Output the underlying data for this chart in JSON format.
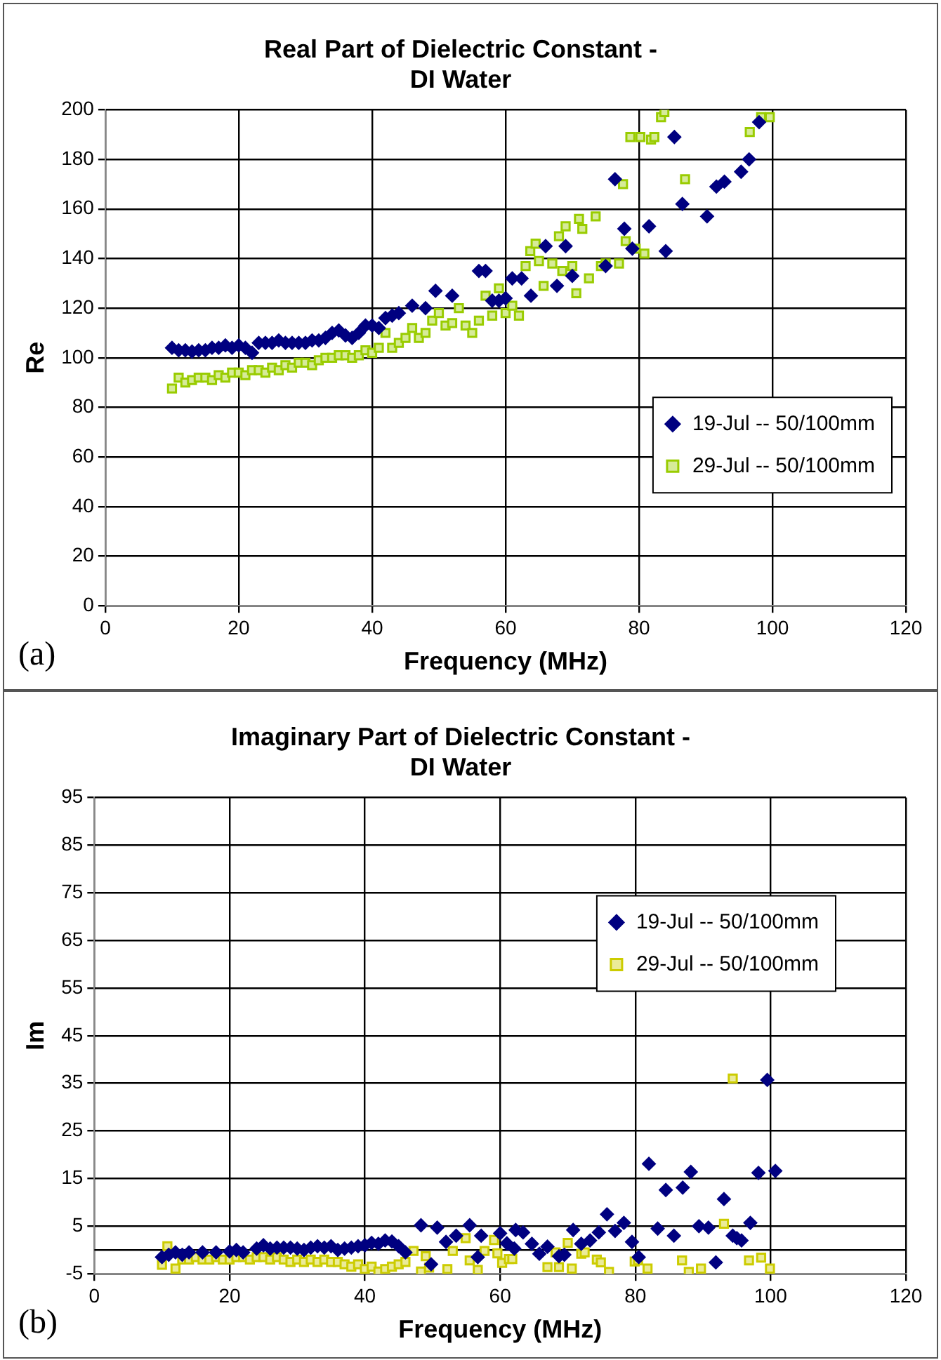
{
  "chart_data": [
    {
      "type": "scatter",
      "title": "Real Part of Dielectric Constant -\nDI Water",
      "xlabel": "Frequency (MHz)",
      "ylabel": "Re",
      "annotations": [
        "(a)"
      ],
      "xlim": [
        0,
        120
      ],
      "xticks": [
        0,
        20,
        40,
        60,
        80,
        100,
        120
      ],
      "ylim": [
        0,
        200
      ],
      "yticks": [
        0,
        20,
        40,
        60,
        80,
        100,
        120,
        140,
        160,
        180,
        200
      ],
      "grid": true,
      "legend": "right",
      "series": [
        {
          "name": "19-Jul -- 50/100mm",
          "color": "#000080",
          "marker": "diamond",
          "x": [
            10,
            11,
            12,
            13,
            14,
            15,
            16,
            17,
            18,
            19,
            20,
            21,
            22,
            23,
            24,
            25,
            26,
            27,
            28,
            29,
            30,
            31,
            32,
            33,
            34,
            35,
            36,
            37,
            38,
            39,
            40,
            41,
            42,
            43,
            44,
            46,
            48,
            49.5,
            52,
            56,
            57,
            58,
            59,
            60,
            61,
            62.4,
            63.8,
            66,
            67.7,
            69,
            70,
            75,
            76.4,
            77.8,
            79,
            81.5,
            84,
            85.3,
            86.5,
            90.2,
            91.6,
            92.8,
            95.3,
            96.5,
            98
          ],
          "values": [
            104,
            103,
            103,
            102.5,
            103,
            103,
            104,
            104,
            105,
            104,
            105,
            104,
            102,
            106,
            106,
            106,
            107,
            106,
            106,
            106,
            106,
            107,
            107,
            108,
            110,
            111,
            109,
            108,
            110,
            113,
            113,
            112,
            116,
            117,
            118,
            121,
            120,
            127,
            125,
            135,
            135,
            123,
            123,
            124,
            132,
            132,
            125,
            145,
            129,
            145,
            133,
            137,
            172,
            152,
            144,
            153,
            143,
            189,
            162,
            157,
            169,
            171,
            175,
            180,
            195
          ]
        },
        {
          "name": "29-Jul -- 50/100mm",
          "color": "#99cc00",
          "marker": "square",
          "x": [
            10,
            11,
            12,
            13,
            14,
            15,
            16,
            17,
            18,
            19,
            20,
            21,
            22,
            23,
            24,
            25,
            26,
            27,
            28,
            29,
            30,
            31,
            32,
            33,
            34,
            35,
            36,
            37,
            38,
            39,
            40,
            41,
            42,
            43,
            44,
            45,
            46,
            47,
            48,
            49,
            50,
            51,
            52,
            53,
            54,
            55,
            56,
            57,
            58,
            59,
            60,
            61,
            62,
            63,
            63.7,
            64.5,
            65,
            65.7,
            67,
            68,
            68.5,
            69,
            70,
            70.6,
            71,
            71.5,
            72.5,
            73.5,
            74.3,
            75,
            77,
            77.6,
            78,
            78.7,
            79.5,
            80.2,
            80.8,
            81.8,
            82.3,
            83.3,
            83.8,
            86.9,
            96.6,
            98.3,
            99.6
          ],
          "values": [
            87.6,
            92,
            90,
            91,
            92,
            92,
            91,
            93,
            92,
            94,
            94,
            93,
            95,
            95,
            94,
            96,
            95,
            97,
            96,
            98,
            98,
            97,
            99,
            100,
            100,
            101,
            101,
            100,
            101,
            103,
            102,
            104,
            110,
            104,
            106,
            108,
            112,
            108,
            110,
            115,
            118,
            113,
            114,
            120,
            113,
            110,
            115,
            125,
            117,
            128,
            118,
            121,
            117,
            137,
            143,
            146,
            139,
            129,
            138,
            149,
            135,
            153,
            137,
            126,
            156,
            152,
            132,
            157,
            137,
            138,
            138,
            170,
            147,
            189,
            144,
            189,
            142,
            188,
            189,
            197,
            199,
            172,
            191,
            197,
            197
          ]
        }
      ]
    },
    {
      "type": "scatter",
      "title": "Imaginary Part of Dielectric Constant -\nDI Water",
      "xlabel": "Frequency (MHz)",
      "ylabel": "Im",
      "annotations": [
        "(b)"
      ],
      "xlim": [
        0,
        120
      ],
      "xticks": [
        0,
        20,
        40,
        60,
        80,
        100,
        120
      ],
      "ylim": [
        -5,
        95
      ],
      "yticks": [
        -5,
        5,
        15,
        25,
        35,
        45,
        55,
        65,
        75,
        85,
        95
      ],
      "grid": true,
      "legend": "top right",
      "ref_lines": [
        {
          "axis": "y",
          "value": 0
        }
      ],
      "series": [
        {
          "name": "19-Jul -- 50/100mm",
          "color": "#000080",
          "marker": "diamond",
          "x": [
            10,
            11,
            12,
            13,
            14,
            16,
            18,
            20,
            21,
            22,
            24,
            25,
            26,
            27,
            28,
            29,
            30,
            31,
            32,
            33,
            34,
            35,
            36,
            37,
            38,
            39,
            40,
            41,
            42,
            43,
            44,
            45,
            46,
            48.3,
            49.8,
            50.7,
            52,
            53.5,
            55.5,
            56.7,
            57.2,
            60,
            61,
            62.1,
            62.3,
            63.4,
            64.7,
            65.8,
            67,
            68.7,
            69.5,
            70.8,
            72,
            73.3,
            74.6,
            75.8,
            77,
            78.3,
            79.5,
            80.5,
            82,
            83.3,
            84.5,
            85.7,
            87,
            88.2,
            89.4,
            90.8,
            91.9,
            93.1,
            94.4,
            95,
            95.7,
            97,
            98.2,
            99.5,
            100.7
          ],
          "values": [
            -1.5,
            -1,
            -0.5,
            -1,
            -0.5,
            -0.5,
            -0.5,
            -0.3,
            0,
            -0.5,
            0.3,
            1,
            0.3,
            0.5,
            0.5,
            0.5,
            0.3,
            0,
            0.5,
            0.8,
            0.5,
            0.8,
            0,
            0.3,
            0.5,
            0.8,
            1,
            1.5,
            1.3,
            2,
            1.8,
            0.8,
            -0.5,
            5.2,
            -3,
            4.7,
            1.7,
            3,
            5.2,
            -1.5,
            3,
            3.5,
            1.4,
            0.3,
            4.2,
            3.7,
            1.3,
            -0.8,
            0.7,
            -1.3,
            -1,
            4.2,
            1.3,
            2,
            3.7,
            7.5,
            4,
            5.7,
            1.7,
            -1.5,
            18.1,
            4.5,
            12.6,
            3,
            13.1,
            16.4,
            5,
            4.7,
            -2.6,
            10.7,
            3,
            2.5,
            2,
            5.7,
            16.2,
            35.7,
            16.6
          ]
        },
        {
          "name": "29-Jul -- 50/100mm",
          "color": "#cccc00",
          "marker": "square",
          "x": [
            10,
            10.8,
            12,
            13,
            14,
            15,
            16,
            17,
            18,
            19,
            20,
            21,
            22,
            23,
            24,
            25,
            26,
            27,
            28,
            29,
            30,
            31,
            32,
            33,
            34,
            35,
            36,
            37,
            38,
            39,
            40,
            41,
            42,
            43,
            44,
            45,
            46,
            47.2,
            48.3,
            49,
            49.5,
            52.2,
            53,
            54.9,
            55.5,
            56.7,
            57.7,
            59.1,
            59.6,
            60.3,
            61.3,
            61.8,
            67,
            68.2,
            68.7,
            70,
            70.6,
            72,
            72.5,
            74.3,
            74.9,
            76.1,
            79.9,
            80.4,
            81.8,
            86.9,
            87.9,
            89.7,
            93.1,
            94.4,
            96.8,
            98.6,
            99.9
          ],
          "values": [
            -3.1,
            0.8,
            -3.9,
            -2,
            -2,
            -1.5,
            -2,
            -2,
            -1.5,
            -2,
            -2,
            -1.5,
            -1.5,
            -2,
            -1.5,
            -1.5,
            -2,
            -1.5,
            -2,
            -2.5,
            -2,
            -2.5,
            -2,
            -2.5,
            -2,
            -2.5,
            -2.5,
            -3,
            -3.5,
            -3,
            -4,
            -3.5,
            -4.5,
            -4,
            -3.5,
            -3,
            -2.5,
            -0.2,
            -4.5,
            -1.3,
            -3.7,
            -4,
            -0.2,
            2.5,
            -2.2,
            -4.2,
            -0.2,
            2.1,
            -0.7,
            -2.7,
            -1.9,
            -1.9,
            -3.6,
            -0.5,
            -3.6,
            1.5,
            -3.9,
            -0.8,
            -0.5,
            -2,
            -2.6,
            -4.6,
            -2.4,
            -2.2,
            -3.9,
            -2.2,
            -4.6,
            -3.9,
            5.5,
            36,
            -2.2,
            -1.6,
            -3.9
          ]
        }
      ]
    }
  ]
}
